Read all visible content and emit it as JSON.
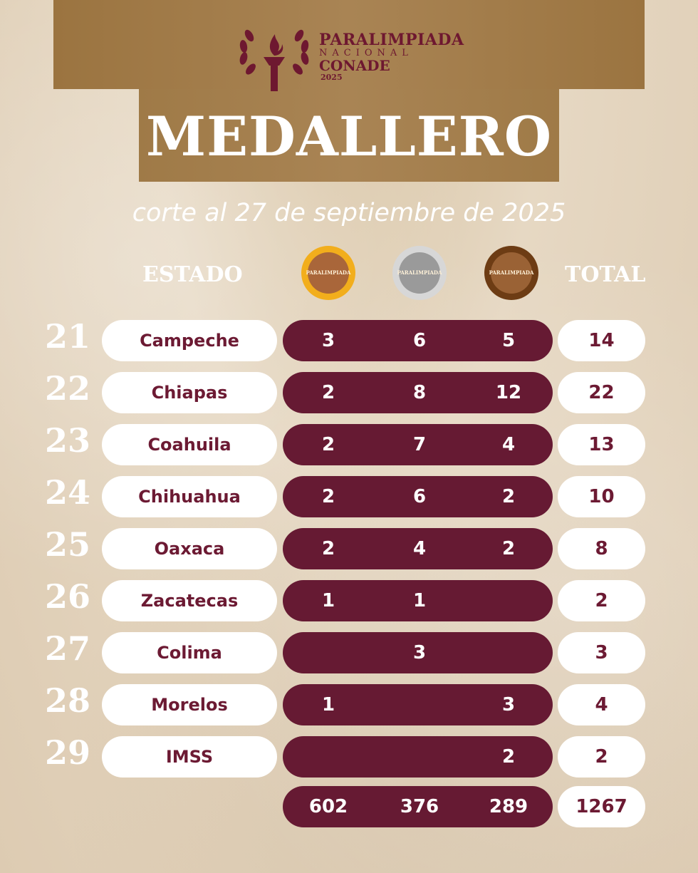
{
  "header": {
    "logo": {
      "line1": "PARALIMPIADA",
      "line2": "NACIONAL",
      "line3": "CONADE",
      "line4": "2025"
    },
    "title": "MEDALLERO",
    "subtitle": "corte al 27 de septiembre de 2025"
  },
  "table": {
    "col_estado": "ESTADO",
    "col_total": "TOTAL",
    "medal_icons": [
      "gold-medal-icon",
      "silver-medal-icon",
      "bronze-medal-icon"
    ],
    "medal_text": "PARALIMPIADA",
    "rows": [
      {
        "rank": "21",
        "state": "Campeche",
        "gold": "3",
        "silver": "6",
        "bronze": "5",
        "total": "14"
      },
      {
        "rank": "22",
        "state": "Chiapas",
        "gold": "2",
        "silver": "8",
        "bronze": "12",
        "total": "22"
      },
      {
        "rank": "23",
        "state": "Coahuila",
        "gold": "2",
        "silver": "7",
        "bronze": "4",
        "total": "13"
      },
      {
        "rank": "24",
        "state": "Chihuahua",
        "gold": "2",
        "silver": "6",
        "bronze": "2",
        "total": "10"
      },
      {
        "rank": "25",
        "state": "Oaxaca",
        "gold": "2",
        "silver": "4",
        "bronze": "2",
        "total": "8"
      },
      {
        "rank": "26",
        "state": "Zacatecas",
        "gold": "1",
        "silver": "1",
        "bronze": "",
        "total": "2"
      },
      {
        "rank": "27",
        "state": "Colima",
        "gold": "",
        "silver": "3",
        "bronze": "",
        "total": "3"
      },
      {
        "rank": "28",
        "state": "Morelos",
        "gold": "1",
        "silver": "",
        "bronze": "3",
        "total": "4"
      },
      {
        "rank": "29",
        "state": "IMSS",
        "gold": "",
        "silver": "",
        "bronze": "2",
        "total": "2"
      }
    ],
    "totals": {
      "gold": "602",
      "silver": "376",
      "bronze": "289",
      "total": "1267"
    }
  },
  "colors": {
    "maroon": "#661a33",
    "banner": "#a98454",
    "gold_medal": "#f2ae1c",
    "silver_medal": "#d7d7d7",
    "bronze_medal": "#6d3c14"
  }
}
